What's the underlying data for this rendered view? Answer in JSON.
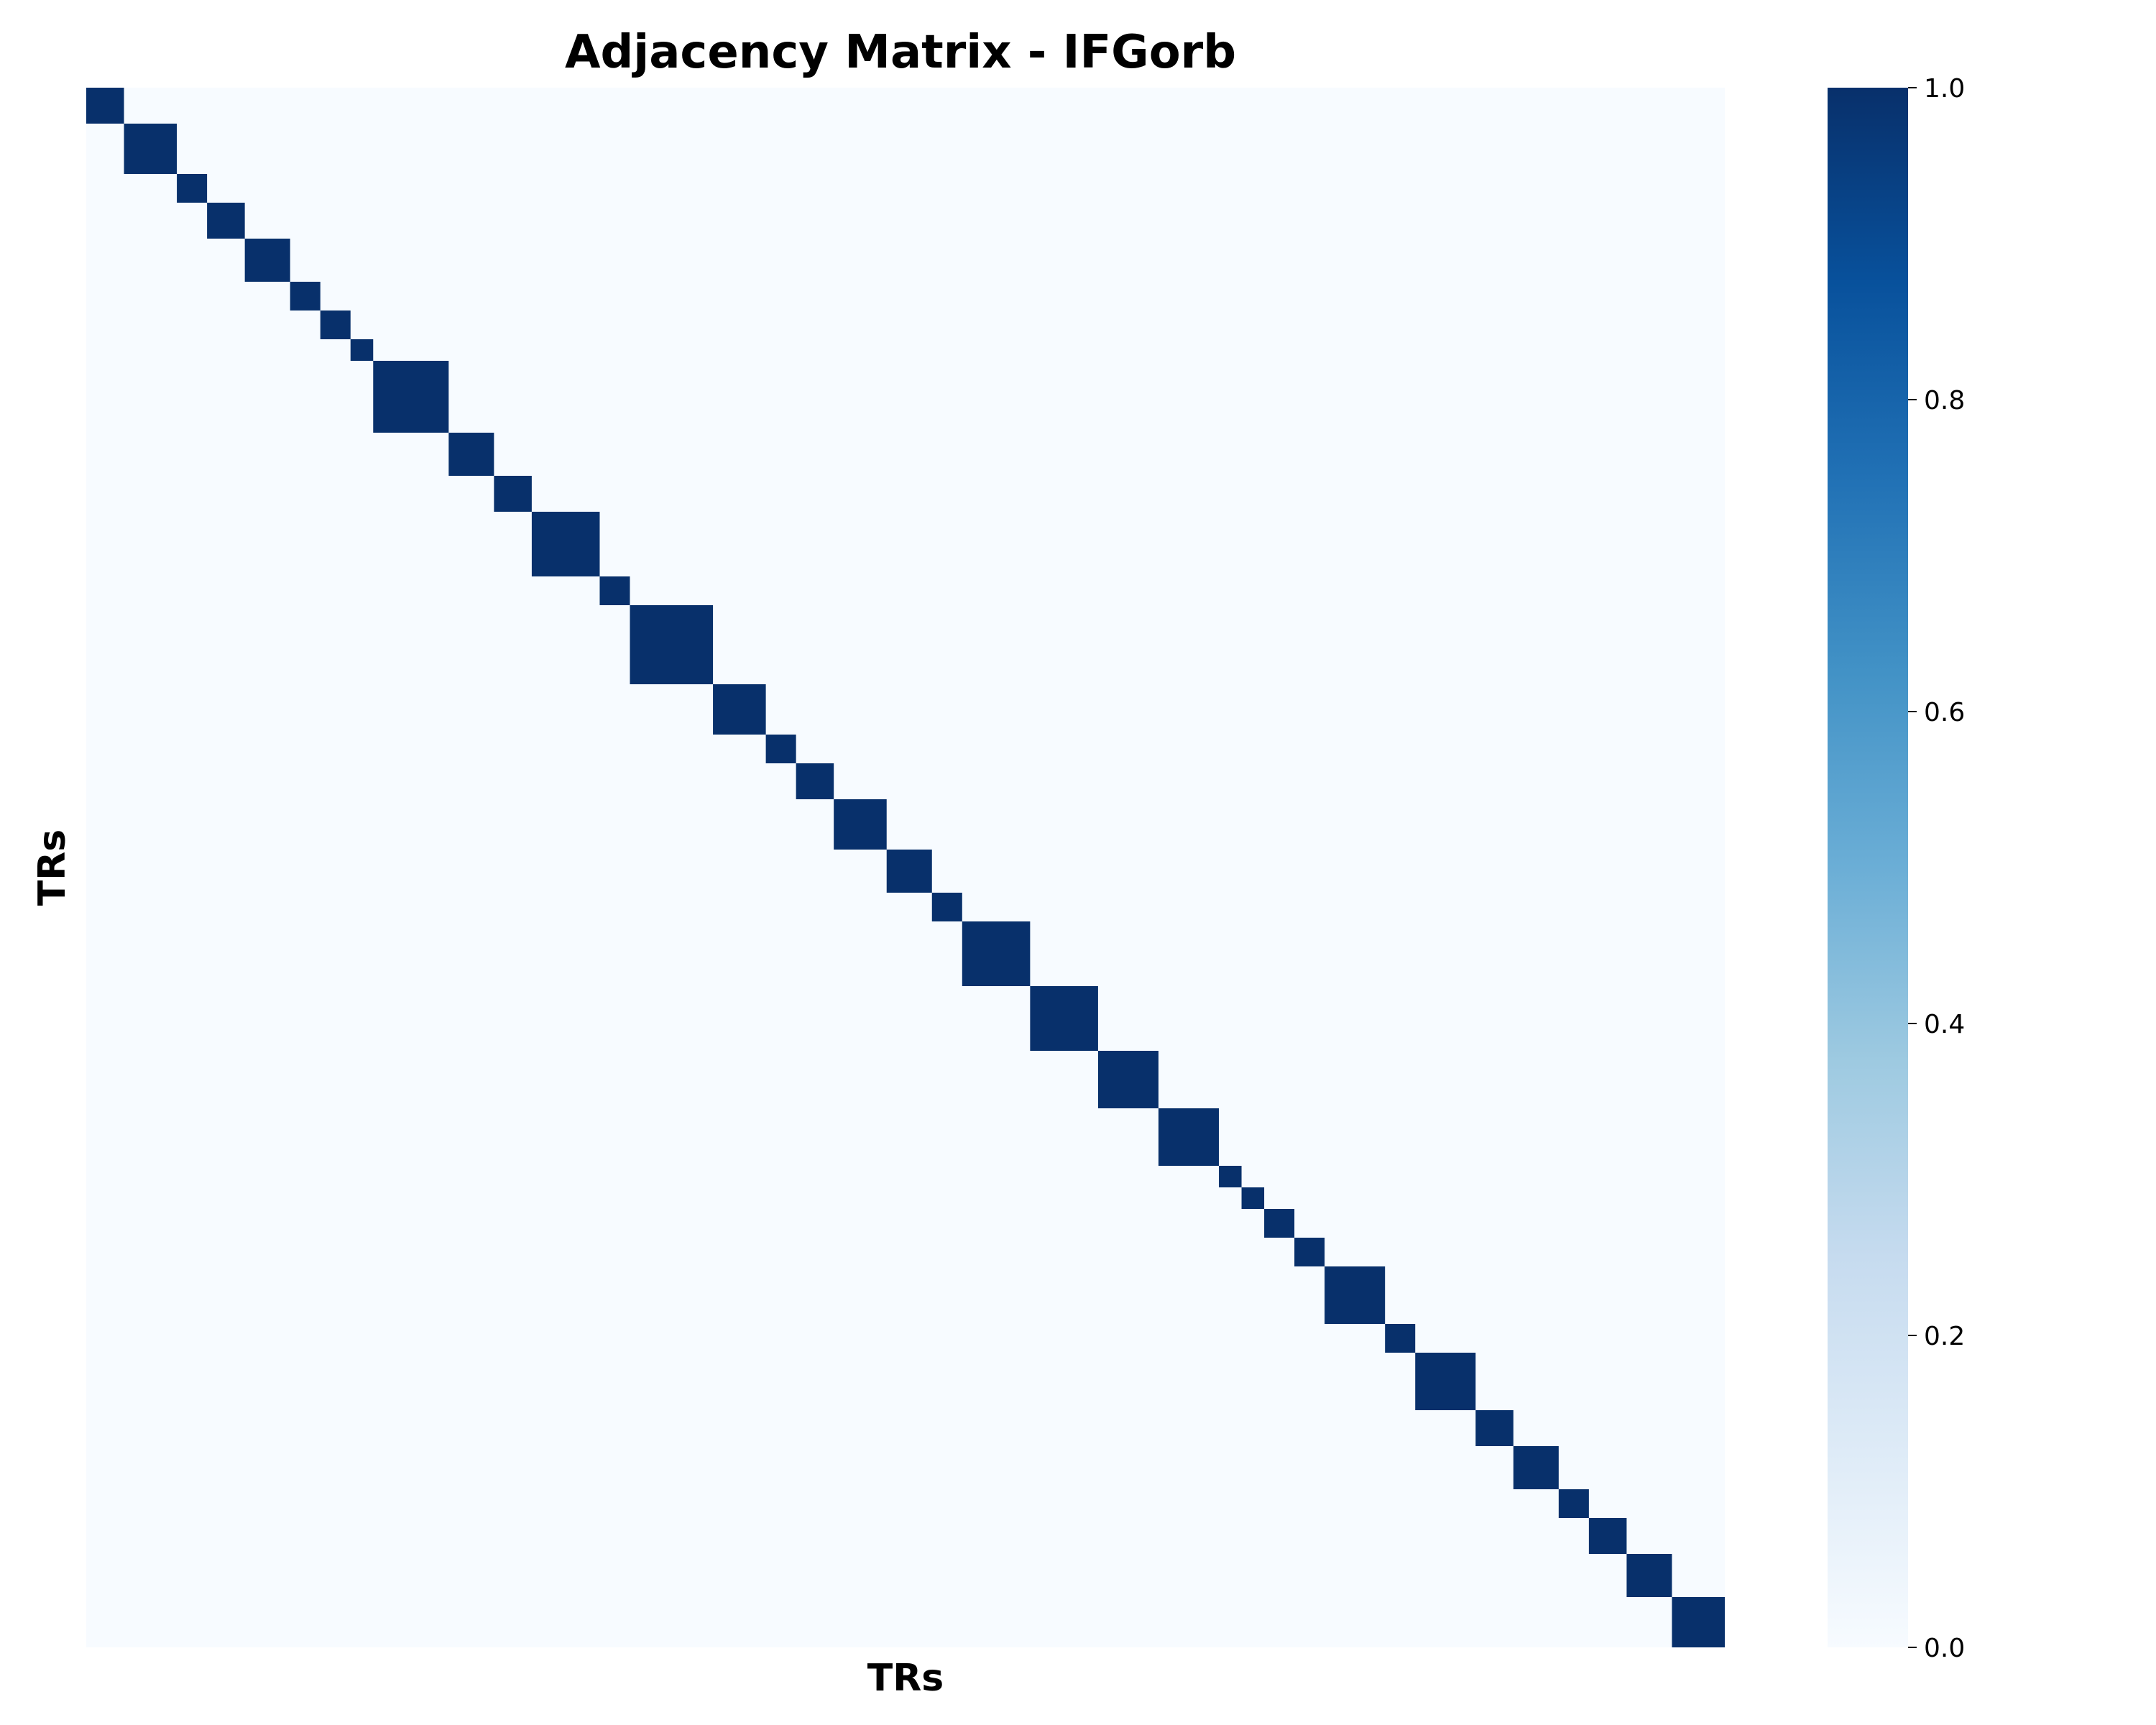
{
  "chart_data": {
    "type": "heatmap",
    "title": "Adjacency Matrix - IFGorb",
    "xlabel": "TRs",
    "ylabel": "TRs",
    "matrix_size": 217,
    "value_range": [
      0,
      1
    ],
    "diagonal_blocks": [
      {
        "start": 0,
        "size": 5
      },
      {
        "start": 5,
        "size": 7
      },
      {
        "start": 12,
        "size": 4
      },
      {
        "start": 16,
        "size": 5
      },
      {
        "start": 21,
        "size": 6
      },
      {
        "start": 27,
        "size": 4
      },
      {
        "start": 31,
        "size": 4
      },
      {
        "start": 35,
        "size": 3
      },
      {
        "start": 38,
        "size": 10
      },
      {
        "start": 48,
        "size": 6
      },
      {
        "start": 54,
        "size": 5
      },
      {
        "start": 59,
        "size": 9
      },
      {
        "start": 68,
        "size": 4
      },
      {
        "start": 72,
        "size": 11
      },
      {
        "start": 83,
        "size": 7
      },
      {
        "start": 90,
        "size": 4
      },
      {
        "start": 94,
        "size": 5
      },
      {
        "start": 99,
        "size": 7
      },
      {
        "start": 106,
        "size": 6
      },
      {
        "start": 112,
        "size": 4
      },
      {
        "start": 116,
        "size": 9
      },
      {
        "start": 125,
        "size": 9
      },
      {
        "start": 134,
        "size": 8
      },
      {
        "start": 142,
        "size": 8
      },
      {
        "start": 150,
        "size": 3
      },
      {
        "start": 153,
        "size": 3
      },
      {
        "start": 156,
        "size": 4
      },
      {
        "start": 160,
        "size": 4
      },
      {
        "start": 164,
        "size": 8
      },
      {
        "start": 172,
        "size": 4
      },
      {
        "start": 176,
        "size": 8
      },
      {
        "start": 184,
        "size": 5
      },
      {
        "start": 189,
        "size": 6
      },
      {
        "start": 195,
        "size": 4
      },
      {
        "start": 199,
        "size": 5
      },
      {
        "start": 204,
        "size": 6
      },
      {
        "start": 210,
        "size": 7
      }
    ],
    "colorbar": {
      "colormap": "Blues",
      "ticks": [
        "0.0",
        "0.2",
        "0.4",
        "0.6",
        "0.8",
        "1.0"
      ],
      "stops": [
        "#f7fbff",
        "#deebf7",
        "#c6dbef",
        "#9ecae1",
        "#6baed6",
        "#4292c6",
        "#2171b5",
        "#08519c",
        "#08306b"
      ]
    },
    "colors": {
      "high": "#08306b",
      "low": "#f7fbff"
    }
  }
}
